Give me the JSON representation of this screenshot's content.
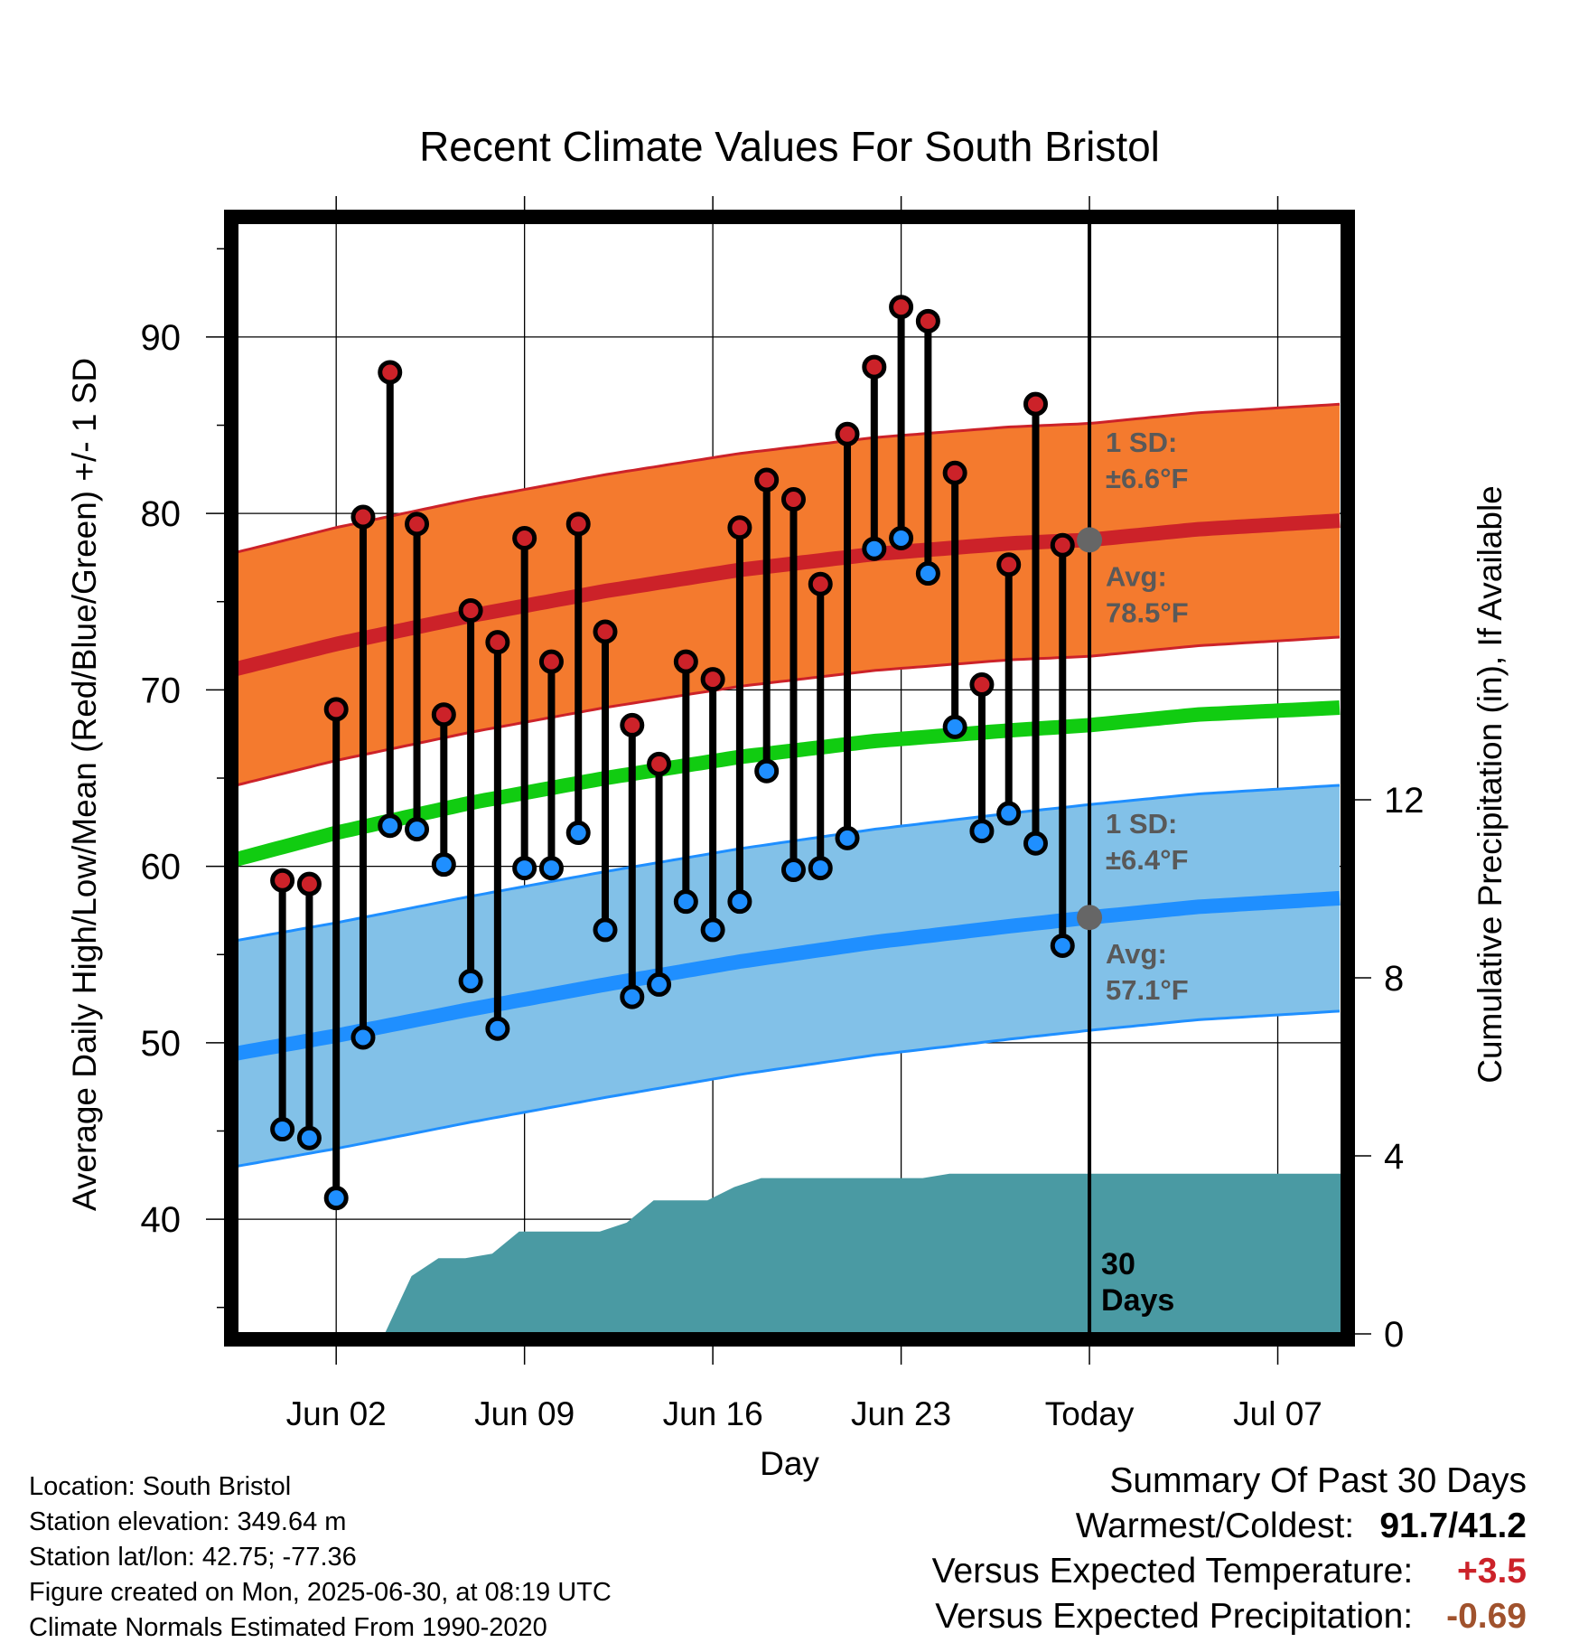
{
  "colors": {
    "high_point": "#cc2229",
    "low_point": "#1f8fff",
    "high_band": "#f47a2e",
    "high_mean_line": "#cc2229",
    "low_band": "#82c1e8",
    "low_mean_line": "#1f8fff",
    "mean_line": "#11cc11",
    "precip_fill": "#4a9aa3",
    "annotation_text": "#595959",
    "anomaly_temp": "#cc2229",
    "anomaly_precip": "#a0522d"
  },
  "chart_data": {
    "type": "line",
    "title": "Recent Climate Values For South Bristol",
    "xlabel": "Day",
    "ylabel": "Average Daily High/Low/Mean (Red/Blue/Green) +/- 1 SD",
    "y2label": "Cumulative Precipitation (in), If Available",
    "ylim": [
      33.5,
      96.5
    ],
    "y2lim": [
      0,
      18
    ],
    "xlim": [
      -3.7,
      37.4
    ],
    "grid": true,
    "yticks": [
      40,
      50,
      60,
      70,
      80,
      90
    ],
    "y2ticks": [
      0,
      4,
      8,
      12
    ],
    "xticks": [
      {
        "day": 0,
        "label": "Jun 02"
      },
      {
        "day": 7,
        "label": "Jun 09"
      },
      {
        "day": 14,
        "label": "Jun 16"
      },
      {
        "day": 21,
        "label": "Jun 23"
      },
      {
        "day": 28,
        "label": "Today"
      },
      {
        "day": 35,
        "label": "Jul 07"
      }
    ],
    "daily": {
      "day": [
        -2,
        -1,
        0,
        1,
        2,
        3,
        4,
        5,
        6,
        7,
        8,
        9,
        10,
        11,
        12,
        13,
        14,
        15,
        16,
        17,
        18,
        19,
        20,
        21,
        22,
        23,
        24,
        25,
        26,
        27
      ],
      "high": [
        59.2,
        59.0,
        68.9,
        79.8,
        88.0,
        79.4,
        68.6,
        74.5,
        72.7,
        78.6,
        71.6,
        79.4,
        73.3,
        68.0,
        65.8,
        71.6,
        70.6,
        79.2,
        81.9,
        80.8,
        76.0,
        84.5,
        88.3,
        91.7,
        90.9,
        82.3,
        70.3,
        77.1,
        86.2,
        78.2
      ],
      "low": [
        45.1,
        44.6,
        41.2,
        50.3,
        62.3,
        62.1,
        60.1,
        53.5,
        50.8,
        59.9,
        59.9,
        61.9,
        56.4,
        52.6,
        53.3,
        58.0,
        56.4,
        58.0,
        65.4,
        59.8,
        59.9,
        61.6,
        78.0,
        78.6,
        76.6,
        67.9,
        62.0,
        63.0,
        61.3,
        55.5
      ]
    },
    "normals": {
      "x": [
        -3.7,
        0,
        5,
        10,
        15,
        20,
        25,
        28,
        32,
        37.4
      ],
      "high_mean": [
        71.2,
        72.6,
        74.2,
        75.6,
        76.8,
        77.7,
        78.3,
        78.5,
        79.1,
        79.6
      ],
      "low_mean": [
        49.4,
        50.4,
        51.9,
        53.3,
        54.6,
        55.7,
        56.6,
        57.1,
        57.7,
        58.2
      ],
      "overall_mean": [
        60.4,
        61.9,
        63.6,
        65.0,
        66.2,
        67.1,
        67.7,
        68.0,
        68.6,
        69.0
      ],
      "high_sd": 6.6,
      "low_sd": 6.4
    },
    "precip_cumulative": {
      "x": [
        1.8,
        2.8,
        3.8,
        4.8,
        5.8,
        6.8,
        7.8,
        8.8,
        9.8,
        10.8,
        11.8,
        12.8,
        13.8,
        14.8,
        15.8,
        16.8,
        17.8,
        18.8,
        19.8,
        20.8,
        21.8,
        22.8,
        23.8,
        24.8,
        25.8,
        26.8,
        27.8,
        37.4
      ],
      "y": [
        0,
        1.3,
        1.7,
        1.7,
        1.8,
        2.3,
        2.3,
        2.3,
        2.3,
        2.5,
        3.0,
        3.0,
        3.0,
        3.3,
        3.5,
        3.5,
        3.5,
        3.5,
        3.5,
        3.5,
        3.5,
        3.6,
        3.6,
        3.6,
        3.6,
        3.6,
        3.6,
        3.6
      ]
    },
    "annotations": {
      "high_sd_label": [
        "1 SD:",
        "±6.6°F"
      ],
      "high_avg_label": [
        "Avg:",
        "78.5°F"
      ],
      "low_sd_label": [
        "1 SD:",
        "±6.4°F"
      ],
      "low_avg_label": [
        "Avg:",
        "57.1°F"
      ],
      "days_label": [
        "30",
        "Days"
      ],
      "today_day": 28,
      "today_high_avg": 78.5,
      "today_low_avg": 57.1
    }
  },
  "footer": {
    "location": "Location: South Bristol",
    "elevation": "Station elevation: 349.64 m",
    "latlon": "Station lat/lon: 42.75; -77.36",
    "created": "Figure created on Mon, 2025-06-30, at 08:19 UTC",
    "normals": "Climate Normals Estimated From 1990-2020"
  },
  "summary": {
    "title": "Summary Of Past 30 Days",
    "warm_cold_label": "Warmest/Coldest:",
    "warm_cold_value": "91.7/41.2",
    "temp_label": "Versus Expected Temperature:",
    "temp_value": "+3.5",
    "precip_label": "Versus Expected Precipitation:",
    "precip_value": "-0.69"
  }
}
